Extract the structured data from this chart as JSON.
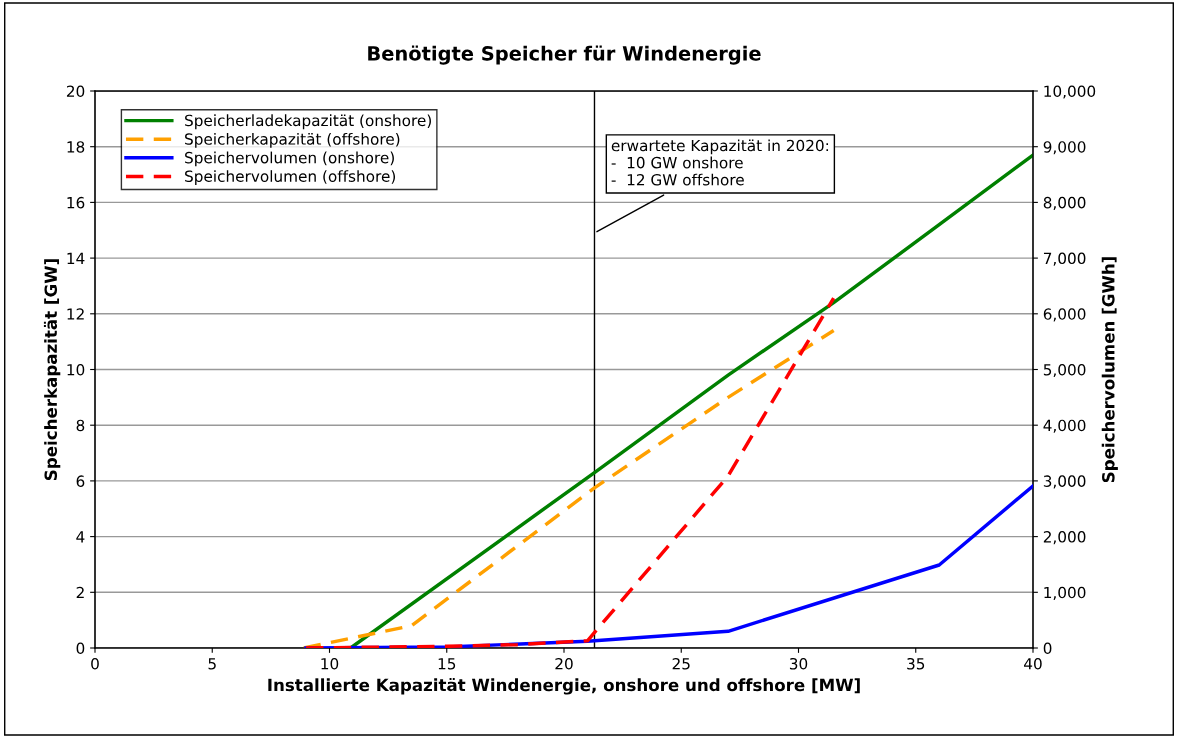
{
  "chart_data": {
    "type": "line",
    "title": "Benötigte Speicher für Windenergie",
    "xlabel": "Installierte Kapazität Windenergie, onshore und offshore [MW]",
    "ylabel": "Speicherkapazität [GW]",
    "y2label": "Speichervolumen [GWh]",
    "series": [
      {
        "name": "Speicherladekapazität (onshore)",
        "color": "#008000",
        "line_style": "solid",
        "x": [
          10.9,
          21.3,
          27,
          31.5,
          36,
          40
        ],
        "values": [
          0,
          6.3,
          9.8,
          12.4,
          15.2,
          17.7
        ]
      },
      {
        "name": "Speicherkapazität (offshore)",
        "color": "#ffa000",
        "line_style": "dashed",
        "x": [
          8.9,
          13.5,
          21.3,
          27,
          31.5
        ],
        "values": [
          0,
          0.8,
          5.75,
          9.0,
          11.4
        ]
      },
      {
        "name": "Speichervolumen (onshore)",
        "color": "#0000ff",
        "line_style": "solid",
        "axis": "y2",
        "x": [
          9,
          15,
          21,
          27,
          36,
          40
        ],
        "values": [
          0,
          20,
          120,
          300,
          1490,
          2910
        ]
      },
      {
        "name": "Speichervolumen (offshore)",
        "color": "#ff0000",
        "line_style": "dashed",
        "axis": "y2",
        "x": [
          9,
          15,
          18,
          21,
          27,
          31.5
        ],
        "values": [
          0,
          30,
          60,
          130,
          3090,
          6280
        ]
      }
    ],
    "xlim": [
      0,
      40
    ],
    "xticks": [
      0,
      5,
      10,
      15,
      20,
      25,
      30,
      35,
      40
    ],
    "ylim": [
      0,
      20
    ],
    "yticks": [
      0,
      2,
      4,
      6,
      8,
      10,
      12,
      14,
      16,
      18,
      20
    ],
    "y2lim": [
      0,
      10000
    ],
    "y2ticks": [
      {
        "value": 0,
        "label": "0"
      },
      {
        "value": 1000,
        "label": "1,000"
      },
      {
        "value": 2000,
        "label": "2,000"
      },
      {
        "value": 3000,
        "label": "3,000"
      },
      {
        "value": 4000,
        "label": "4,000"
      },
      {
        "value": 5000,
        "label": "5,000"
      },
      {
        "value": 6000,
        "label": "6,000"
      },
      {
        "value": 7000,
        "label": "7,000"
      },
      {
        "value": 8000,
        "label": "8,000"
      },
      {
        "value": 9000,
        "label": "9,000"
      },
      {
        "value": 10000,
        "label": "10,000"
      }
    ],
    "ref_lines": [
      {
        "axis": "x",
        "value": 21.3,
        "color": "#000000"
      }
    ],
    "annotations": [
      {
        "text": "erwartete Kapazität in 2020:\n-  10 GW onshore\n-  12 GW offshore",
        "x": 21.3,
        "y": 14.9
      }
    ],
    "grid": "y",
    "legend": "top left",
    "marker": "none"
  }
}
